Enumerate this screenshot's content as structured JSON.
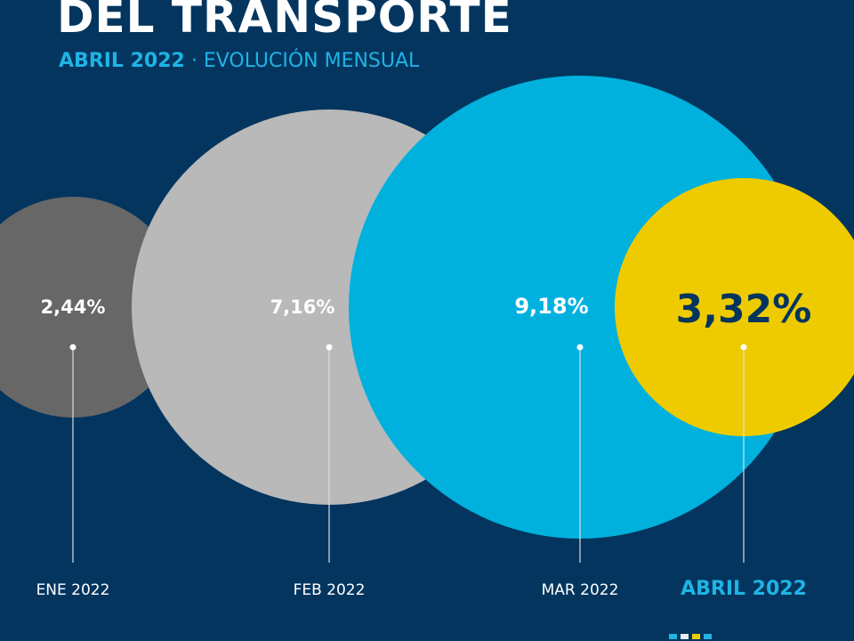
{
  "header": {
    "title": "DEL TRANSPORTE",
    "subtitle_strong": "ABRIL 2022",
    "subtitle_sep": " · ",
    "subtitle_rest": "EVOLUCIÓN MENSUAL"
  },
  "chart_data": {
    "type": "bubble",
    "title": "DEL TRANSPORTE",
    "subtitle": "ABRIL 2022 · EVOLUCIÓN MENSUAL",
    "categories": [
      "ENE 2022",
      "FEB 2022",
      "MAR 2022",
      "ABRIL 2022"
    ],
    "values": [
      2.44,
      7.16,
      9.18,
      3.32
    ],
    "value_labels": [
      "2,44%",
      "7,16%",
      "9,18%",
      "3,32%"
    ],
    "unit": "%",
    "colors": [
      "#676767",
      "#b9b9b9",
      "#00b1de",
      "#eecb00"
    ],
    "highlight": "ABRIL 2022"
  },
  "colors": {
    "background": "#04355f",
    "accent": "#1fb3e5",
    "highlight_text": "#04355f",
    "squares": [
      "#1fb3e5",
      "#e9eef3",
      "#eecb00",
      "#1fb3e5"
    ]
  }
}
